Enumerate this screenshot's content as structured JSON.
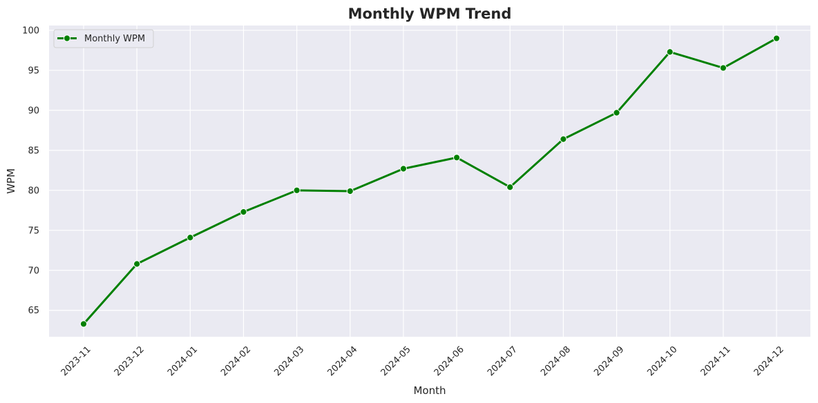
{
  "chart_data": {
    "type": "line",
    "title": "Monthly WPM Trend",
    "xlabel": "Month",
    "ylabel": "WPM",
    "categories": [
      "2023-11",
      "2023-12",
      "2024-01",
      "2024-02",
      "2024-03",
      "2024-04",
      "2024-05",
      "2024-06",
      "2024-07",
      "2024-08",
      "2024-09",
      "2024-10",
      "2024-11",
      "2024-12"
    ],
    "series": [
      {
        "name": "Monthly WPM",
        "values": [
          63.3,
          70.8,
          74.1,
          77.3,
          80.0,
          79.9,
          82.7,
          84.1,
          80.4,
          86.4,
          89.7,
          97.3,
          95.3,
          99.0
        ]
      }
    ],
    "ylim": [
      61.7,
      100.6
    ],
    "yticks": [
      65,
      70,
      75,
      80,
      85,
      90,
      95,
      100
    ],
    "grid": true,
    "legend_position": "top-left",
    "colors": {
      "line": "#008000",
      "plot_background": "#eaeaf2",
      "grid": "#ffffff"
    }
  }
}
